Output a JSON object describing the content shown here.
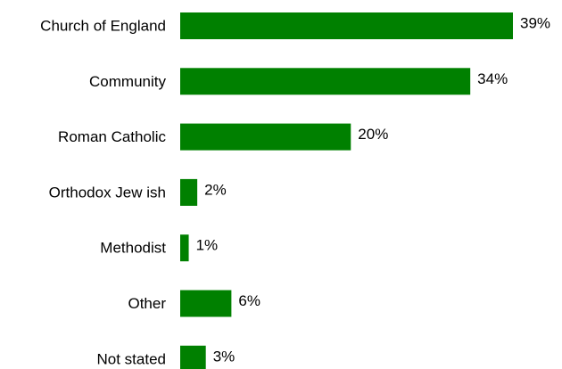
{
  "chart_data": {
    "type": "bar",
    "orientation": "horizontal",
    "categories": [
      "Church of England",
      "Community",
      "Roman Catholic",
      "Orthodox Jew ish",
      "Methodist",
      "Other",
      "Not stated"
    ],
    "values": [
      39,
      34,
      20,
      2,
      1,
      6,
      3
    ],
    "value_labels": [
      "39%",
      "34%",
      "20%",
      "2%",
      "1%",
      "6%",
      "3%"
    ],
    "unit": "%",
    "xlim": [
      0,
      39
    ],
    "grid": false,
    "legend": "none",
    "bar_color": "#008000"
  }
}
